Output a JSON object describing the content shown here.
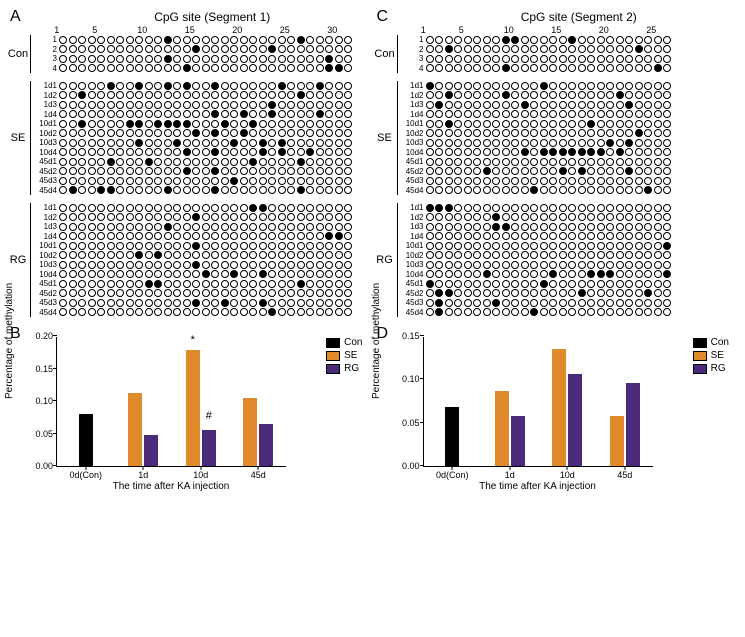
{
  "colors": {
    "con": "#000000",
    "se": "#e08a2c",
    "rg": "#4b2a7a",
    "axis": "#000000",
    "bg": "#ffffff"
  },
  "panelA": {
    "label": "A",
    "title": "CpG site (Segment 1)",
    "ncols": 31,
    "ticks": [
      1,
      5,
      10,
      15,
      20,
      25,
      30
    ],
    "groups": [
      {
        "name": "Con",
        "rows": [
          {
            "label": "1",
            "fill": [
              12,
              26
            ]
          },
          {
            "label": "2",
            "fill": [
              15,
              23
            ]
          },
          {
            "label": "3",
            "fill": [
              12,
              29
            ]
          },
          {
            "label": "4",
            "fill": [
              14,
              29,
              30
            ]
          }
        ]
      },
      {
        "name": "SE",
        "rows": [
          {
            "label": "1d1",
            "fill": [
              6,
              9,
              12,
              14,
              17,
              24,
              28
            ]
          },
          {
            "label": "1d2",
            "fill": [
              3,
              26
            ]
          },
          {
            "label": "1d3",
            "fill": [
              23
            ]
          },
          {
            "label": "1d4",
            "fill": [
              17,
              20,
              23,
              28
            ]
          },
          {
            "label": "10d1",
            "fill": [
              3,
              8,
              9,
              11,
              12,
              13,
              14,
              18,
              21
            ]
          },
          {
            "label": "10d2",
            "fill": [
              15,
              17,
              20
            ]
          },
          {
            "label": "10d3",
            "fill": [
              9,
              13,
              19,
              22,
              24
            ]
          },
          {
            "label": "10d4",
            "fill": [
              14,
              17,
              22,
              24,
              27
            ]
          },
          {
            "label": "45d1",
            "fill": [
              6,
              10,
              21,
              26
            ]
          },
          {
            "label": "45d2",
            "fill": [
              14,
              17
            ]
          },
          {
            "label": "45d3",
            "fill": [
              19
            ]
          },
          {
            "label": "45d4",
            "fill": [
              2,
              5,
              6,
              12,
              17,
              26
            ]
          }
        ]
      },
      {
        "name": "RG",
        "rows": [
          {
            "label": "1d1",
            "fill": [
              21,
              22
            ]
          },
          {
            "label": "1d2",
            "fill": [
              15
            ]
          },
          {
            "label": "1d3",
            "fill": [
              12
            ]
          },
          {
            "label": "1d4",
            "fill": [
              29,
              30
            ]
          },
          {
            "label": "10d1",
            "fill": [
              15
            ]
          },
          {
            "label": "10d2",
            "fill": [
              9,
              11
            ]
          },
          {
            "label": "10d3",
            "fill": [
              15
            ]
          },
          {
            "label": "10d4",
            "fill": [
              16,
              19,
              22
            ]
          },
          {
            "label": "45d1",
            "fill": [
              10,
              11,
              26
            ]
          },
          {
            "label": "45d2",
            "fill": []
          },
          {
            "label": "45d3",
            "fill": [
              15,
              18,
              22
            ]
          },
          {
            "label": "45d4",
            "fill": [
              23
            ]
          }
        ]
      }
    ]
  },
  "panelC": {
    "label": "C",
    "title": "CpG site (Segment 2)",
    "ncols": 26,
    "ticks": [
      1,
      5,
      10,
      15,
      20,
      25
    ],
    "groups": [
      {
        "name": "Con",
        "rows": [
          {
            "label": "1",
            "fill": [
              9,
              10,
              16
            ]
          },
          {
            "label": "2",
            "fill": [
              3,
              23
            ]
          },
          {
            "label": "3",
            "fill": []
          },
          {
            "label": "4",
            "fill": [
              9,
              25
            ]
          }
        ]
      },
      {
        "name": "SE",
        "rows": [
          {
            "label": "1d1",
            "fill": [
              1,
              13
            ]
          },
          {
            "label": "1d2",
            "fill": [
              3,
              9,
              21
            ]
          },
          {
            "label": "1d3",
            "fill": [
              2,
              11,
              22
            ]
          },
          {
            "label": "1d4",
            "fill": []
          },
          {
            "label": "10d1",
            "fill": [
              3,
              18
            ]
          },
          {
            "label": "10d2",
            "fill": [
              23
            ]
          },
          {
            "label": "10d3",
            "fill": [
              20,
              22
            ]
          },
          {
            "label": "10d4",
            "fill": [
              11,
              13,
              14,
              15,
              16,
              17,
              18,
              19,
              21
            ]
          },
          {
            "label": "45d1",
            "fill": []
          },
          {
            "label": "45d2",
            "fill": [
              7,
              15,
              17,
              22
            ]
          },
          {
            "label": "45d3",
            "fill": []
          },
          {
            "label": "45d4",
            "fill": [
              12,
              24
            ]
          }
        ]
      },
      {
        "name": "RG",
        "rows": [
          {
            "label": "1d1",
            "fill": [
              1,
              2,
              3
            ]
          },
          {
            "label": "1d2",
            "fill": [
              8
            ]
          },
          {
            "label": "1d3",
            "fill": [
              8,
              9
            ]
          },
          {
            "label": "1d4",
            "fill": []
          },
          {
            "label": "10d1",
            "fill": [
              26
            ]
          },
          {
            "label": "10d2",
            "fill": []
          },
          {
            "label": "10d3",
            "fill": []
          },
          {
            "label": "10d4",
            "fill": [
              7,
              14,
              18,
              19,
              20,
              26
            ]
          },
          {
            "label": "45d1",
            "fill": [
              1,
              13
            ]
          },
          {
            "label": "45d2",
            "fill": [
              2,
              3,
              17,
              24
            ]
          },
          {
            "label": "45d3",
            "fill": [
              2,
              8
            ]
          },
          {
            "label": "45d4",
            "fill": [
              2,
              12
            ]
          }
        ]
      }
    ]
  },
  "panelB": {
    "label": "B",
    "ylabel": "Percentage of methylation",
    "xlabel": "The time after KA injection",
    "ymax": 0.2,
    "ytick_step": 0.05,
    "yticks": [
      "0.00",
      "0.05",
      "0.10",
      "0.15",
      "0.20"
    ],
    "categories": [
      "0d(Con)",
      "1d",
      "10d",
      "45d"
    ],
    "series": [
      {
        "name": "Con",
        "color": "#000000",
        "values": [
          0.08,
          null,
          null,
          null
        ]
      },
      {
        "name": "SE",
        "color": "#e08a2c",
        "values": [
          null,
          0.113,
          0.178,
          0.105
        ]
      },
      {
        "name": "RG",
        "color": "#4b2a7a",
        "values": [
          null,
          0.048,
          0.056,
          0.065
        ]
      }
    ],
    "annotations": [
      {
        "text": "*",
        "cat_index": 2,
        "series_index": 1,
        "y": 0.185
      },
      {
        "text": "#",
        "cat_index": 2,
        "series_index": 2,
        "y": 0.068
      }
    ],
    "legend": [
      "Con",
      "SE",
      "RG"
    ]
  },
  "panelD": {
    "label": "D",
    "ylabel": "Percentage of methylation",
    "xlabel": "The time after KA injection",
    "ymax": 0.15,
    "ytick_step": 0.05,
    "yticks": [
      "0.00",
      "0.05",
      "0.10",
      "0.15"
    ],
    "categories": [
      "0d(Con)",
      "1d",
      "10d",
      "45d"
    ],
    "series": [
      {
        "name": "Con",
        "color": "#000000",
        "values": [
          0.068,
          null,
          null,
          null
        ]
      },
      {
        "name": "SE",
        "color": "#e08a2c",
        "values": [
          null,
          0.087,
          0.135,
          0.058
        ]
      },
      {
        "name": "RG",
        "color": "#4b2a7a",
        "values": [
          null,
          0.058,
          0.106,
          0.096
        ]
      }
    ],
    "annotations": [],
    "legend": [
      "Con",
      "SE",
      "RG"
    ]
  }
}
